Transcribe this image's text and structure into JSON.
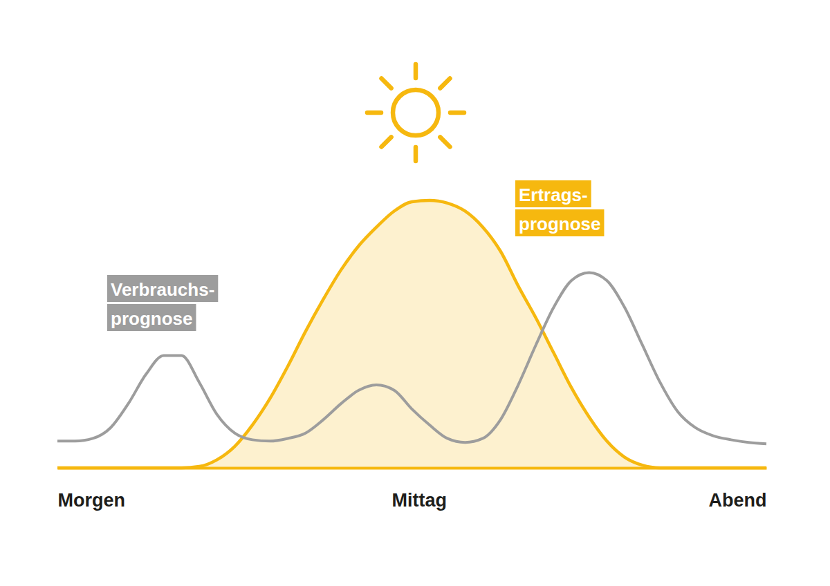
{
  "chart_data": {
    "type": "line",
    "x": [
      0,
      2.5,
      5,
      7.5,
      10,
      12.5,
      15,
      17.5,
      20,
      22.5,
      25,
      27.5,
      30,
      32.5,
      35,
      37.5,
      40,
      42.5,
      45,
      47.5,
      50,
      52.5,
      55,
      57.5,
      60,
      62.5,
      65,
      67.5,
      70,
      72.5,
      75,
      77.5,
      80,
      82.5,
      85,
      87.5,
      90,
      92.5,
      95,
      97.5,
      100
    ],
    "xlim": [
      0,
      100
    ],
    "ylim": [
      0,
      105
    ],
    "xticks": [
      {
        "value": 0,
        "label": "Morgen"
      },
      {
        "value": 51,
        "label": "Mittag"
      },
      {
        "value": 100,
        "label": "Abend"
      }
    ],
    "tick_labels": "x",
    "grid": false,
    "series": [
      {
        "name": "Verbrauchs-prognose",
        "color": "#9d9d9d",
        "type": "line",
        "values": [
          10,
          10,
          11,
          15,
          24,
          35,
          42,
          42,
          32,
          20,
          13,
          10.5,
          10,
          11,
          13,
          18,
          24,
          29,
          31,
          29,
          22,
          16,
          11,
          9.5,
          11,
          18,
          31,
          46,
          60,
          70,
          73,
          70,
          60,
          46,
          32,
          21,
          15,
          12,
          10.5,
          9.5,
          9
        ]
      },
      {
        "name": "Ertrags-prognose",
        "color": "#f6b80f",
        "type": "area",
        "values": [
          0,
          0,
          0,
          0,
          0,
          0,
          0,
          0,
          0.5,
          3,
          8,
          16,
          26,
          38,
          51,
          63,
          74,
          83,
          90,
          96,
          99.5,
          100,
          99,
          96,
          90,
          81,
          68,
          56,
          43,
          30,
          19,
          10,
          4,
          1,
          0,
          0,
          0,
          0,
          0,
          0,
          0
        ]
      }
    ]
  }
}
